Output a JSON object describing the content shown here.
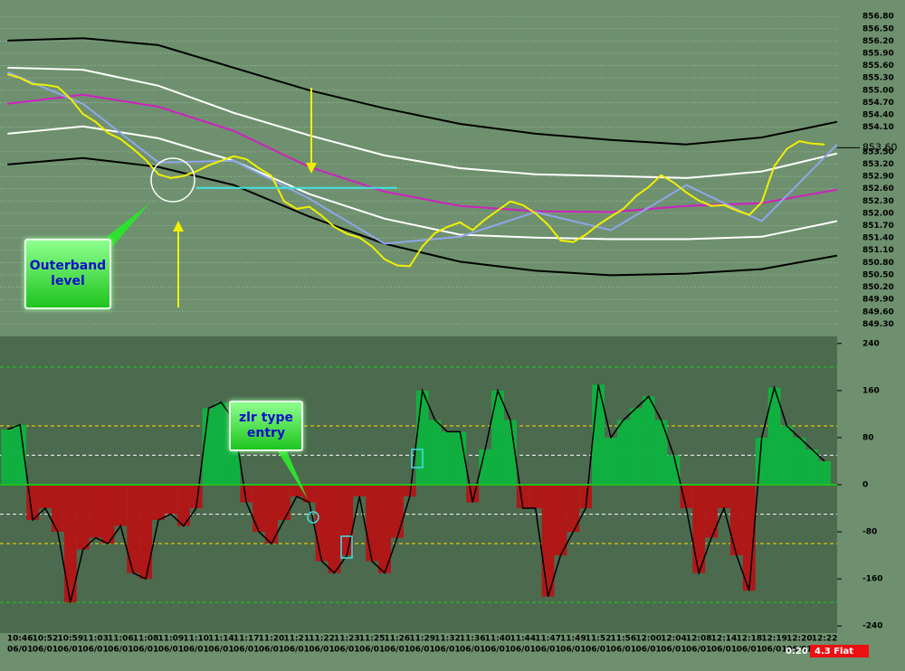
{
  "chart_data": [
    {
      "type": "line",
      "ylim": [
        849.0,
        857.2
      ],
      "xlim": [
        -0.6,
        66
      ],
      "yticks": [
        {
          "value": 849.3,
          "label": "849.30"
        },
        {
          "value": 849.6,
          "label": "849.60"
        },
        {
          "value": 849.9,
          "label": "849.90"
        },
        {
          "value": 850.2,
          "label": "850.20"
        },
        {
          "value": 850.5,
          "label": "850.50"
        },
        {
          "value": 850.8,
          "label": "850.80"
        },
        {
          "value": 851.1,
          "label": "851.10"
        },
        {
          "value": 851.4,
          "label": "851.40"
        },
        {
          "value": 851.7,
          "label": "851.70"
        },
        {
          "value": 852.0,
          "label": "852.00"
        },
        {
          "value": 852.3,
          "label": "852.30"
        },
        {
          "value": 852.6,
          "label": "852.60"
        },
        {
          "value": 852.9,
          "label": "852.90"
        },
        {
          "value": 853.2,
          "label": "853.20"
        },
        {
          "value": 853.5,
          "label": "853.50"
        },
        {
          "value": 854.1,
          "label": "854.10"
        },
        {
          "value": 854.4,
          "label": "854.40"
        },
        {
          "value": 854.7,
          "label": "854.70"
        },
        {
          "value": 855.0,
          "label": "855.00"
        },
        {
          "value": 855.3,
          "label": "855.30"
        },
        {
          "value": 855.6,
          "label": "855.60"
        },
        {
          "value": 855.9,
          "label": "855.90"
        },
        {
          "value": 856.2,
          "label": "856.20"
        },
        {
          "value": 856.5,
          "label": "856.50"
        },
        {
          "value": 856.8,
          "label": "856.80"
        }
      ],
      "grid": true,
      "series": [
        {
          "color": "#000000",
          "x": [
            0,
            6,
            12,
            18,
            24,
            30,
            36,
            42,
            48,
            54,
            60,
            66
          ],
          "values": [
            856.21,
            856.27,
            856.1,
            855.55,
            855.0,
            854.56,
            854.18,
            853.94,
            853.79,
            853.68,
            853.85,
            854.23
          ]
        },
        {
          "color": "#ffffff",
          "x": [
            0,
            6,
            12,
            18,
            24,
            30,
            36,
            42,
            48,
            54,
            60,
            66
          ],
          "values": [
            855.55,
            855.5,
            855.11,
            854.45,
            853.9,
            853.41,
            853.1,
            852.95,
            852.91,
            852.86,
            853.02,
            853.46
          ]
        },
        {
          "color": "#d020c0",
          "x": [
            0,
            6,
            12,
            18,
            24,
            30,
            36,
            42,
            48,
            54,
            60,
            66
          ],
          "values": [
            854.67,
            854.89,
            854.6,
            854.01,
            853.13,
            852.53,
            852.18,
            852.05,
            852.03,
            852.18,
            852.25,
            852.58
          ]
        },
        {
          "color": "#ffffff",
          "x": [
            0,
            6,
            12,
            18,
            24,
            30,
            36,
            42,
            48,
            54,
            60,
            66
          ],
          "values": [
            853.94,
            854.12,
            853.83,
            853.28,
            852.47,
            851.87,
            851.48,
            851.41,
            851.37,
            851.37,
            851.43,
            851.81
          ]
        },
        {
          "color": "#000000",
          "x": [
            0,
            6,
            12,
            18,
            24,
            30,
            36,
            42,
            48,
            54,
            60,
            66
          ],
          "values": [
            853.19,
            853.35,
            853.13,
            852.69,
            851.92,
            851.26,
            850.82,
            850.6,
            850.49,
            850.53,
            850.64,
            850.97
          ]
        },
        {
          "color": "#8fa6ea",
          "x": [
            0,
            6,
            12,
            18,
            24,
            30,
            36,
            42,
            48,
            54,
            60,
            66
          ],
          "values": [
            855.44,
            854.67,
            853.24,
            853.28,
            852.36,
            851.26,
            851.43,
            852.03,
            851.59,
            852.69,
            851.81,
            853.68
          ]
        },
        {
          "color": "#f0f000",
          "values": [
            855.39,
            855.3,
            855.15,
            855.13,
            855.08,
            854.8,
            854.42,
            854.23,
            853.96,
            853.81,
            853.57,
            853.3,
            852.95,
            852.86,
            852.91,
            853.02,
            853.17,
            853.28,
            853.39,
            853.32,
            853.1,
            852.91,
            852.29,
            852.11,
            852.16,
            851.94,
            851.67,
            851.5,
            851.41,
            851.19,
            850.88,
            850.73,
            850.71,
            851.19,
            851.52,
            851.67,
            851.78,
            851.59,
            851.85,
            852.07,
            852.29,
            852.2,
            852.0,
            851.72,
            851.34,
            851.3,
            851.48,
            851.72,
            851.92,
            852.11,
            852.42,
            852.64,
            852.93,
            852.75,
            852.51,
            852.31,
            852.18,
            852.2,
            852.07,
            851.96,
            852.27,
            853.15,
            853.57,
            853.76,
            853.7,
            853.68
          ]
        }
      ],
      "level": {
        "value": 852.62,
        "x": [
          15,
          31
        ],
        "color": "#40e0e0"
      },
      "last_price": {
        "value": 853.6,
        "label": "853.60"
      },
      "annotation": [
        "Outerband",
        "level"
      ]
    },
    {
      "type": "bar",
      "ylim": [
        -252,
        252
      ],
      "xlim": [
        -0.6,
        66
      ],
      "yticks": [
        240,
        160,
        80,
        0,
        -80,
        -160,
        -240
      ],
      "pos_color": "#10b040",
      "neg_color": "#b01818",
      "levels": [
        {
          "value": 200,
          "color": "#20c020"
        },
        {
          "value": 100,
          "color": "#f0d000"
        },
        {
          "value": 50,
          "color": "#e8e8e8"
        },
        {
          "value": -50,
          "color": "#e8e8e8"
        },
        {
          "value": -100,
          "color": "#f0d000"
        },
        {
          "value": -200,
          "color": "#20c020"
        }
      ],
      "categories": [
        null,
        "10:46",
        null,
        "10:52",
        null,
        "10:59",
        null,
        "11:03",
        null,
        "11:06",
        null,
        "11:08",
        null,
        "11:09",
        null,
        "11:10",
        null,
        "11:14",
        null,
        "11:17",
        null,
        "11:20",
        null,
        "11:21",
        null,
        "11:22",
        null,
        "11:23",
        null,
        "11:25",
        null,
        "11:26",
        null,
        "11:29",
        null,
        "11:32",
        null,
        "11:36",
        null,
        "11:40",
        null,
        "11:44",
        null,
        "11:47",
        null,
        "11:49",
        null,
        "11:52",
        null,
        "11:56",
        null,
        "12:00",
        null,
        "12:04",
        null,
        "12:08",
        null,
        "12:14",
        null,
        "12:18",
        null,
        "12:19",
        null,
        "12:20",
        null,
        "12:22"
      ],
      "dates": [
        null,
        "06/01",
        null,
        "06/01",
        null,
        "06/01",
        null,
        "06/01",
        null,
        "06/01",
        null,
        "06/01",
        null,
        "06/01",
        null,
        "06/01",
        null,
        "06/01",
        null,
        "06/01",
        null,
        "06/01",
        null,
        "06/01",
        null,
        "06/01",
        null,
        "06/01",
        null,
        "06/01",
        null,
        "06/01",
        null,
        "06/01",
        null,
        "06/01",
        null,
        "06/01",
        null,
        "06/01",
        null,
        "06/01",
        null,
        "06/01",
        null,
        "06/01",
        null,
        "06/01",
        null,
        "06/01",
        null,
        "06/01",
        null,
        "06/01",
        null,
        "06/01",
        null,
        "06/01",
        null,
        "06/01",
        null,
        "06/01",
        null,
        "06/01",
        null,
        "06/01"
      ],
      "values": [
        94,
        102,
        -60,
        -40,
        -80,
        -200,
        -110,
        -90,
        -100,
        -70,
        -150,
        -160,
        -60,
        -50,
        -70,
        -40,
        130,
        140,
        110,
        -30,
        -80,
        -100,
        -60,
        -20,
        -30,
        -130,
        -150,
        -120,
        -20,
        -130,
        -150,
        -90,
        -20,
        160,
        110,
        90,
        90,
        -30,
        60,
        160,
        110,
        -40,
        -40,
        -190,
        -120,
        -80,
        -40,
        170,
        80,
        110,
        130,
        150,
        110,
        50,
        -40,
        -150,
        -90,
        -40,
        -120,
        -180,
        80,
        165,
        100,
        80,
        60,
        40
      ],
      "annotation": [
        "zlr type",
        "entry"
      ]
    }
  ],
  "status": {
    "timer": "0:20",
    "position": "4.3 Flat"
  }
}
